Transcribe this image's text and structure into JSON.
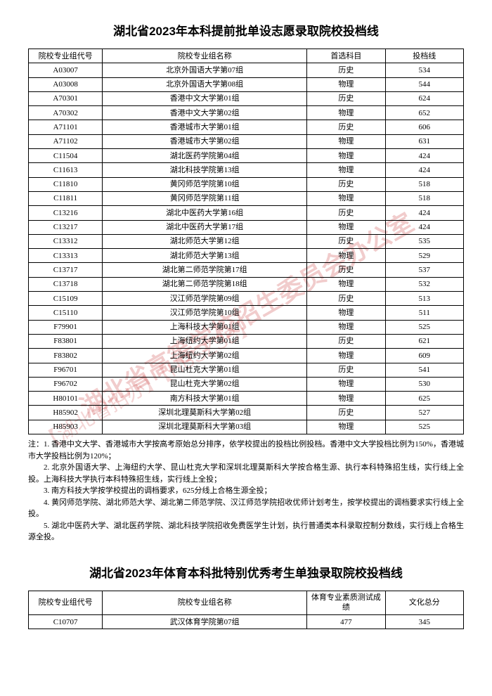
{
  "title1": "湖北省2023年本科提前批单设志愿录取院校投档线",
  "title2": "湖北省2023年体育本科批特别优秀考生单独录取院校投档线",
  "table1": {
    "headers": [
      "院校专业组代号",
      "院校专业组名称",
      "首选科目",
      "投档线"
    ],
    "rows": [
      [
        "A03007",
        "北京外国语大学第07组",
        "历史",
        "534"
      ],
      [
        "A03008",
        "北京外国语大学第08组",
        "物理",
        "544"
      ],
      [
        "A70301",
        "香港中文大学第01组",
        "历史",
        "624"
      ],
      [
        "A70302",
        "香港中文大学第02组",
        "物理",
        "652"
      ],
      [
        "A71101",
        "香港城市大学第01组",
        "历史",
        "606"
      ],
      [
        "A71102",
        "香港城市大学第02组",
        "物理",
        "631"
      ],
      [
        "C11504",
        "湖北医药学院第04组",
        "物理",
        "424"
      ],
      [
        "C11613",
        "湖北科技学院第13组",
        "物理",
        "424"
      ],
      [
        "C11810",
        "黄冈师范学院第10组",
        "历史",
        "518"
      ],
      [
        "C11811",
        "黄冈师范学院第11组",
        "物理",
        "518"
      ],
      [
        "C13216",
        "湖北中医药大学第16组",
        "历史",
        "424"
      ],
      [
        "C13217",
        "湖北中医药大学第17组",
        "物理",
        "424"
      ],
      [
        "C13312",
        "湖北师范大学第12组",
        "历史",
        "535"
      ],
      [
        "C13313",
        "湖北师范大学第13组",
        "物理",
        "529"
      ],
      [
        "C13717",
        "湖北第二师范学院第17组",
        "历史",
        "537"
      ],
      [
        "C13718",
        "湖北第二师范学院第18组",
        "物理",
        "532"
      ],
      [
        "C15109",
        "汉江师范学院第09组",
        "历史",
        "513"
      ],
      [
        "C15110",
        "汉江师范学院第10组",
        "物理",
        "511"
      ],
      [
        "F79901",
        "上海科技大学第01组",
        "物理",
        "525"
      ],
      [
        "F83801",
        "上海纽约大学第01组",
        "历史",
        "621"
      ],
      [
        "F83802",
        "上海纽约大学第02组",
        "物理",
        "609"
      ],
      [
        "F96701",
        "昆山杜克大学第01组",
        "历史",
        "541"
      ],
      [
        "F96702",
        "昆山杜克大学第02组",
        "物理",
        "530"
      ],
      [
        "H80101",
        "南方科技大学第01组",
        "物理",
        "625"
      ],
      [
        "H85902",
        "深圳北理莫斯科大学第02组",
        "历史",
        "527"
      ],
      [
        "H85903",
        "深圳北理莫斯科大学第03组",
        "物理",
        "525"
      ]
    ]
  },
  "notes": [
    "注：1. 香港中文大学、香港城市大学按高考原始总分排序，依学校提出的投档比例投档。香港中文大学投档比例为150%，香港城市大学投档比例为120%；",
    "2. 北京外国语大学、上海纽约大学、昆山杜克大学和深圳北理莫斯科大学按合格生源、执行本科特殊招生线，实行线上全投。上海科技大学执行本科特殊招生线，实行线上全投；",
    "3. 南方科技大学按学校提出的调档要求，625分线上合格生源全投；",
    "4. 黄冈师范学院、湖北师范大学、湖北第二师范学院、汉江师范学院招收优师计划考生，按学校提出的调档要求实行线上全投。",
    "5. 湖北中医药大学、湖北医药学院、湖北科技学院招收免费医学生计划，执行普通类本科录取控制分数线，实行线上合格生源全投。"
  ],
  "table2": {
    "headers": [
      "院校专业组代号",
      "院校专业组名称",
      "体育专业素质测试成绩",
      "文化总分"
    ],
    "rows": [
      [
        "C10707",
        "武汉体育学院第07组",
        "477",
        "345"
      ]
    ]
  },
  "watermark_text1": "湖北省高等学校招生委员会办公室",
  "watermark_text2": "【湖北省招办】【HBSZSB】"
}
